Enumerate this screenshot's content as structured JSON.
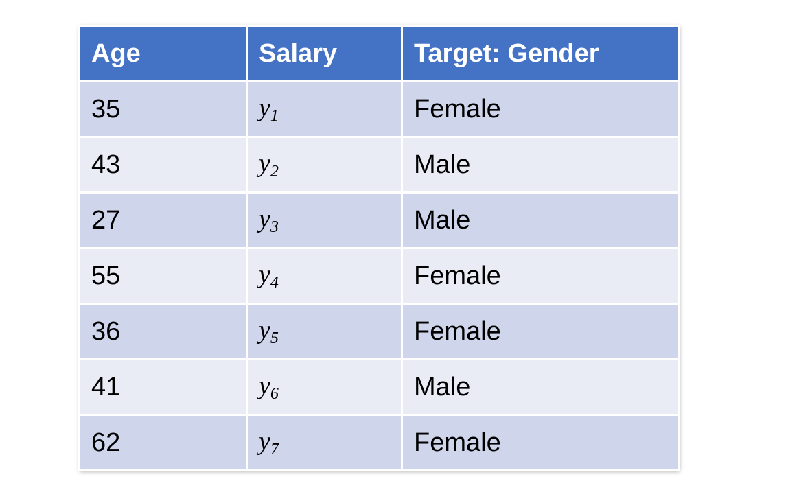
{
  "table": {
    "headers": [
      "Age",
      "Salary",
      "Target: Gender"
    ],
    "rows": [
      {
        "age": "35",
        "salary_var": "y",
        "salary_sub": "1",
        "gender": "Female"
      },
      {
        "age": "43",
        "salary_var": "y",
        "salary_sub": "2",
        "gender": "Male"
      },
      {
        "age": "27",
        "salary_var": "y",
        "salary_sub": "3",
        "gender": "Male"
      },
      {
        "age": "55",
        "salary_var": "y",
        "salary_sub": "4",
        "gender": "Female"
      },
      {
        "age": "36",
        "salary_var": "y",
        "salary_sub": "5",
        "gender": "Female"
      },
      {
        "age": "41",
        "salary_var": "y",
        "salary_sub": "6",
        "gender": "Male"
      },
      {
        "age": "62",
        "salary_var": "y",
        "salary_sub": "7",
        "gender": "Female"
      }
    ],
    "colors": {
      "header_bg": "#4472c4",
      "row_odd_bg": "#cfd5ea",
      "row_even_bg": "#e9ebf5"
    }
  }
}
